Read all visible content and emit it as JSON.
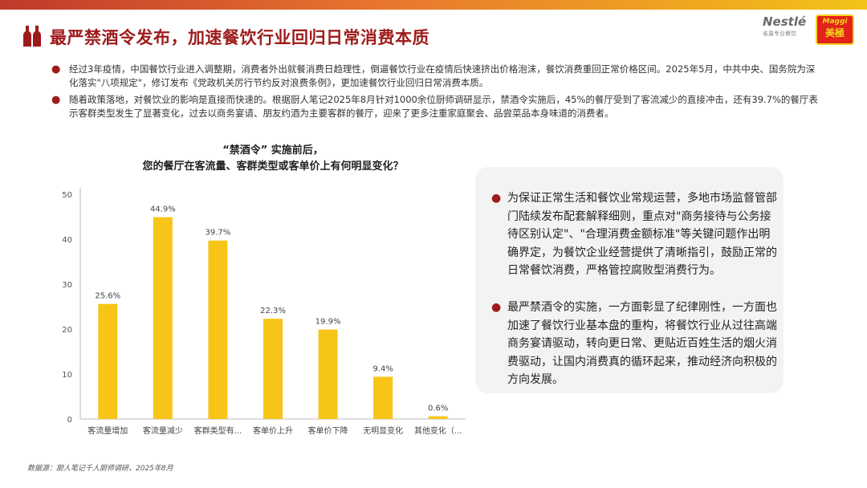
{
  "header": {
    "title": "最严禁酒令发布，加速餐饮行业回归日常消费本质",
    "logo_nestle": "Nestlé",
    "logo_nestle_sub": "雀巢专业餐饮",
    "logo_maggi_top": "Maggi",
    "logo_maggi_bottom": "美極"
  },
  "bullets": [
    "经过3年疫情，中国餐饮行业进入调整期，消费者外出就餐消费日趋理性，倒逼餐饮行业在疫情后快速挤出价格泡沫，餐饮消费重回正常价格区间。2025年5月，中共中央、国务院为深化落实\"八项规定\"，修订发布《党政机关厉行节约反对浪费条例》，更加速餐饮行业回归日常消费本质。",
    "随着政策落地，对餐饮业的影响是直接而快速的。根据厨人笔记2025年8月针对1000余位厨师调研显示，禁酒令实施后，45%的餐厅受到了客流减少的直接冲击，还有39.7%的餐厅表示客群类型发生了显著变化，过去以商务宴请、朋友约酒为主要客群的餐厅，迎来了更多注重家庭聚会、品尝菜品本身味道的消费者。"
  ],
  "chart_data": {
    "type": "bar",
    "title_line1": "“禁酒令” 实施前后，",
    "title_line2": "您的餐厅在客流量、客群类型或客单价上有何明显变化？",
    "categories": [
      "客流量增加",
      "客流量减少",
      "客群类型有...",
      "客单价上升",
      "客单价下降",
      "无明显变化",
      "其他变化（..."
    ],
    "values": [
      25.6,
      44.9,
      39.7,
      22.3,
      19.9,
      9.4,
      0.6
    ],
    "value_labels": [
      "25.6%",
      "44.9%",
      "39.7%",
      "22.3%",
      "19.9%",
      "9.4%",
      "0.6%"
    ],
    "yticks": [
      "0",
      "10",
      "20",
      "30",
      "40",
      "50"
    ],
    "ylim": [
      0,
      50
    ],
    "bar_color": "#f7c518",
    "grid": false
  },
  "right_panel": [
    "为保证正常生活和餐饮业常规运营，多地市场监督管部门陆续发布配套解释细则，重点对\"商务接待与公务接待区别认定\"、\"合理消费金额标准\"等关键问题作出明确界定，为餐饮企业经营提供了清晰指引，鼓励正常的日常餐饮消费，严格管控腐败型消费行为。",
    "最严禁酒令的实施，一方面彰显了纪律刚性，一方面也加速了餐饮行业基本盘的重构，将餐饮行业从过往高端商务宴请驱动，转向更日常、更贴近百姓生活的烟火消费驱动，让国内消费真的循环起来，推动经济向积极的方向发展。"
  ],
  "source": "数据源：厨人笔记千人厨师调研，2025年8月",
  "colors": {
    "accent": "#9e1b1b",
    "bar": "#f7c518"
  }
}
